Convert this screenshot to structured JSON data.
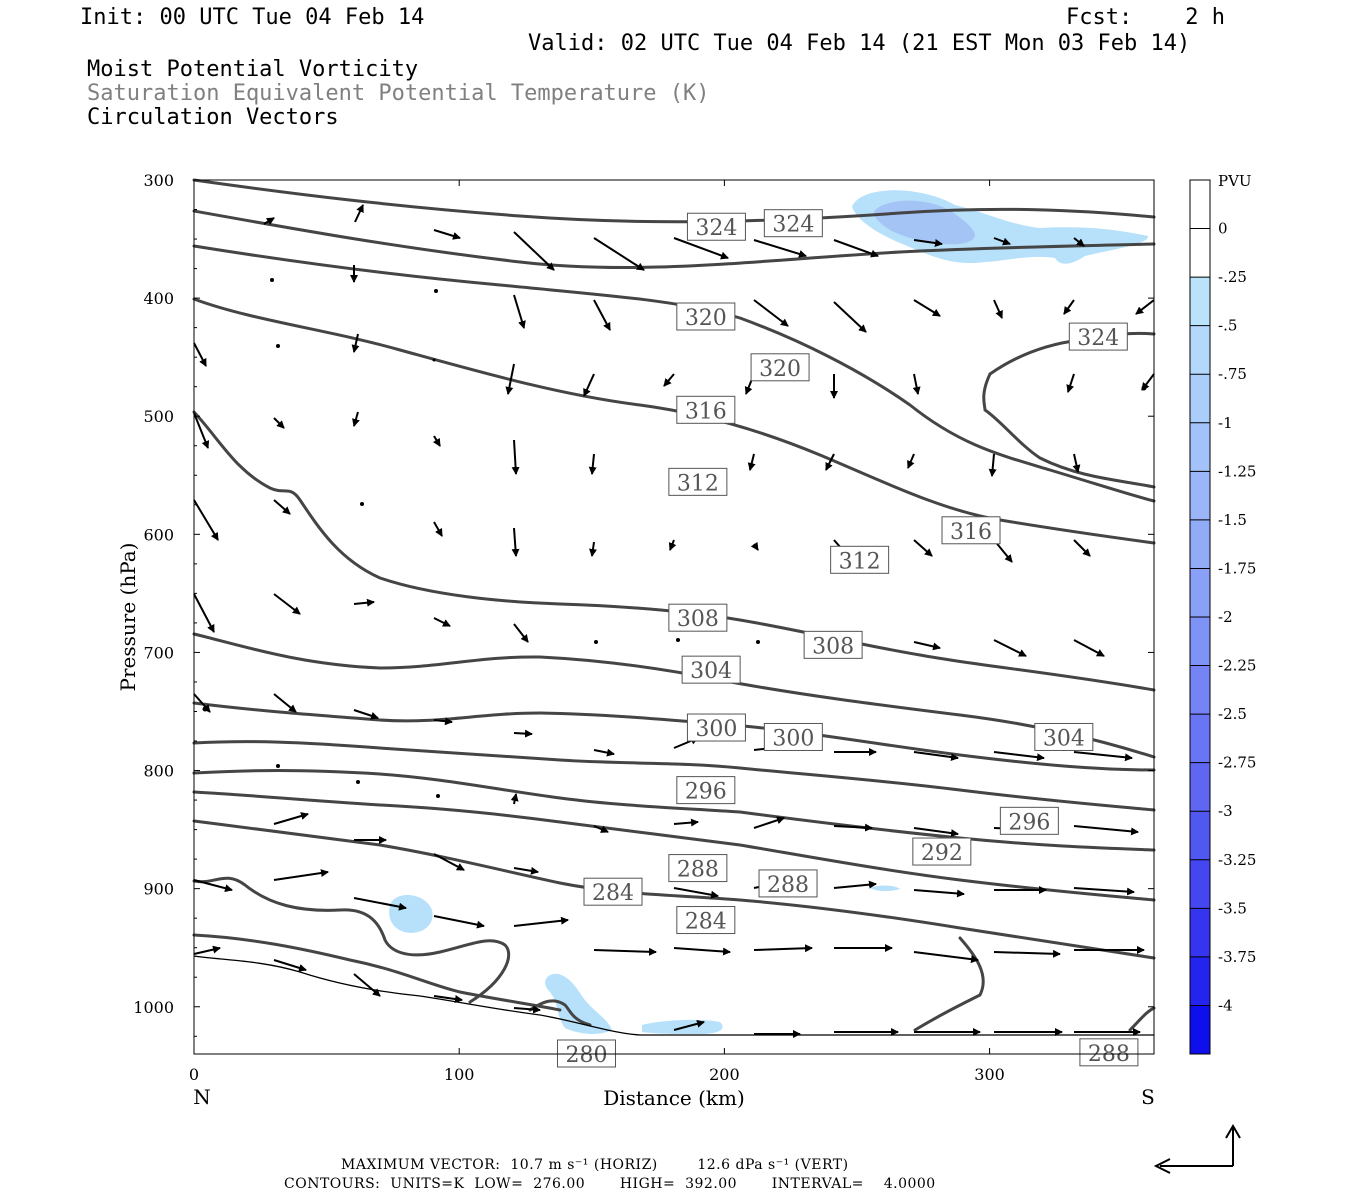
{
  "header": {
    "init": "Init: 00 UTC Tue 04 Feb 14",
    "fcst": "Fcst:    2 h",
    "valid": "Valid: 02 UTC Tue 04 Feb 14 (21 EST Mon 03 Feb 14)",
    "title1": "Moist Potential Vorticity",
    "title2": "Saturation Equivalent Potential Temperature (K)",
    "title3": "Circulation Vectors"
  },
  "footer": {
    "max_vector": "MAXIMUM VECTOR:  10.7 m s⁻¹ (HORIZ)        12.6 dPa s⁻¹ (VERT)",
    "contours": "CONTOURS:  UNITS=K  LOW=  276.00       HIGH=  392.00       INTERVAL=    4.0000"
  },
  "colors": {
    "contour": "#454545",
    "pv_shade": "#b7e1fb",
    "pv_shade_dark": "#a4c4f5"
  },
  "chart_data": {
    "type": "contour",
    "xlabel": "Distance (km)",
    "ylabel": "Pressure (hPa)",
    "xlim": [
      0,
      362
    ],
    "ylim": [
      1040,
      300
    ],
    "x_ticks": [
      "0",
      "100",
      "200",
      "300"
    ],
    "y_ticks": [
      "300",
      "400",
      "500",
      "600",
      "700",
      "800",
      "900",
      "1000"
    ],
    "x_end_labels": {
      "left": "N",
      "right": "S"
    },
    "colorbar": {
      "title": "PVU",
      "labels": [
        "0",
        "-.25",
        "-.5",
        "-.75",
        "-1",
        "-1.25",
        "-1.5",
        "-1.75",
        "-2",
        "-2.25",
        "-2.5",
        "-2.75",
        "-3",
        "-3.25",
        "-3.5",
        "-3.75",
        "-4"
      ],
      "colors": [
        "#ffffff",
        "#ffffff",
        "#bbe2fb",
        "#b3d8fb",
        "#abcdfa",
        "#a3c2f9",
        "#9ab6f8",
        "#92abf7",
        "#89a0f6",
        "#7f92f5",
        "#7584f4",
        "#6a75f3",
        "#5e66f2",
        "#5157f1",
        "#4446f0",
        "#3535ef",
        "#2424ee",
        "#0f0fee"
      ]
    },
    "contour_labels": [
      {
        "text": "324",
        "x": 197,
        "p": 340
      },
      {
        "text": "324",
        "x": 226,
        "p": 337
      },
      {
        "text": "324",
        "x": 341,
        "p": 433
      },
      {
        "text": "320",
        "x": 193,
        "p": 416
      },
      {
        "text": "320",
        "x": 221,
        "p": 459
      },
      {
        "text": "316",
        "x": 193,
        "p": 495
      },
      {
        "text": "316",
        "x": 293,
        "p": 597
      },
      {
        "text": "312",
        "x": 190,
        "p": 556
      },
      {
        "text": "312",
        "x": 251,
        "p": 622
      },
      {
        "text": "308",
        "x": 190,
        "p": 671
      },
      {
        "text": "308",
        "x": 241,
        "p": 694
      },
      {
        "text": "304",
        "x": 195,
        "p": 715
      },
      {
        "text": "304",
        "x": 328,
        "p": 772
      },
      {
        "text": "300",
        "x": 197,
        "p": 764
      },
      {
        "text": "300",
        "x": 226,
        "p": 772
      },
      {
        "text": "296",
        "x": 193,
        "p": 817
      },
      {
        "text": "296",
        "x": 315,
        "p": 843
      },
      {
        "text": "292",
        "x": 282,
        "p": 869
      },
      {
        "text": "288",
        "x": 190,
        "p": 883
      },
      {
        "text": "288",
        "x": 224,
        "p": 896
      },
      {
        "text": "288",
        "x": 345,
        "p": 1039
      },
      {
        "text": "284",
        "x": 158,
        "p": 903
      },
      {
        "text": "284",
        "x": 193,
        "p": 927
      },
      {
        "text": "280",
        "x": 148,
        "p": 1040
      }
    ]
  }
}
